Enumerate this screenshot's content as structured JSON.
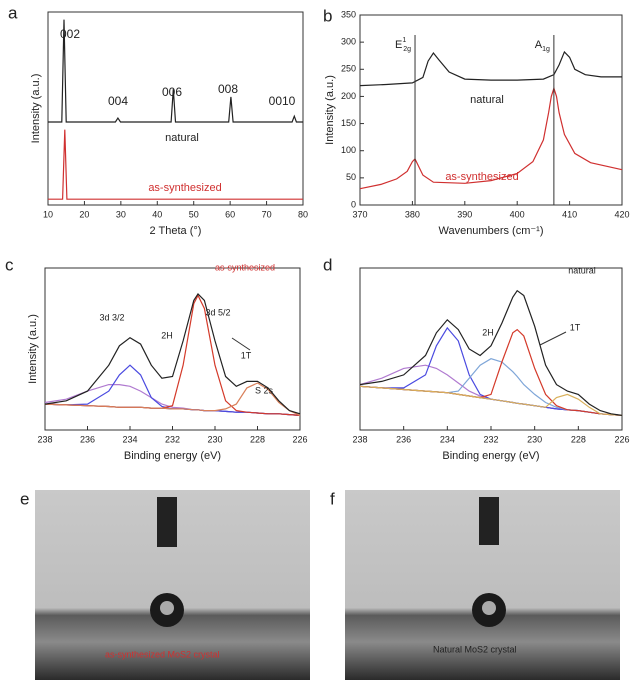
{
  "chart_data": [
    {
      "type": "line",
      "panel_label": "a",
      "x_label": "2 Theta (°)",
      "y_label": "Intensity (a.u.)",
      "xlim": [
        10,
        80
      ],
      "ylim": [
        0,
        100
      ],
      "xticks": [
        10,
        20,
        30,
        40,
        50,
        60,
        70,
        80
      ],
      "series": [
        {
          "name": "natural",
          "color": "#222222",
          "x": [
            10,
            13.8,
            14.4,
            15.0,
            28.5,
            29.2,
            29.9,
            43.8,
            44.4,
            45,
            59.6,
            60.2,
            60.8,
            77,
            77.6,
            78.2,
            80
          ],
          "values": [
            43,
            43,
            96,
            43,
            43,
            45,
            43,
            43,
            60,
            43,
            43,
            56,
            43,
            43,
            46,
            43,
            43
          ]
        },
        {
          "name": "as-synthesized",
          "color": "#d03030",
          "x": [
            10,
            14.0,
            14.6,
            15.2,
            80
          ],
          "values": [
            3,
            3,
            39,
            3,
            3
          ]
        }
      ],
      "annotations": [
        {
          "text": "002"
        },
        {
          "text": "004"
        },
        {
          "text": "006"
        },
        {
          "text": "008"
        },
        {
          "text": "0010"
        }
      ]
    },
    {
      "type": "line",
      "panel_label": "b",
      "x_label": "Wavenumbers (cm⁻¹)",
      "y_label": "Intensity (a.u.)",
      "xlim": [
        370,
        420
      ],
      "ylim": [
        0,
        350
      ],
      "xticks": [
        370,
        380,
        390,
        400,
        410,
        420
      ],
      "yticks": [
        0,
        50,
        100,
        150,
        200,
        250,
        300,
        350
      ],
      "series": [
        {
          "name": "natural",
          "color": "#222222",
          "x": [
            370,
            375,
            380,
            382,
            383,
            384,
            385,
            387,
            390,
            395,
            400,
            405,
            407,
            408,
            409,
            410,
            411,
            413,
            416,
            420
          ],
          "values": [
            220,
            222,
            225,
            235,
            265,
            280,
            268,
            245,
            232,
            230,
            230,
            232,
            240,
            258,
            282,
            272,
            250,
            240,
            236,
            236
          ]
        },
        {
          "name": "as-synthesized",
          "color": "#d03030",
          "x": [
            370,
            374,
            377,
            379,
            380,
            380.5,
            381,
            382,
            384,
            390,
            395,
            400,
            403,
            405,
            406,
            406.5,
            407,
            407.5,
            408,
            409,
            411,
            414,
            420
          ],
          "values": [
            30,
            38,
            48,
            62,
            80,
            85,
            75,
            55,
            42,
            40,
            45,
            58,
            80,
            120,
            170,
            200,
            215,
            200,
            170,
            130,
            95,
            78,
            65
          ]
        }
      ],
      "markers": [
        {
          "x": 380.5,
          "label": "E",
          "sup": "1",
          "sub": "2g"
        },
        {
          "x": 407,
          "label": "A",
          "sub": "1g"
        }
      ]
    },
    {
      "type": "line",
      "panel_label": "c",
      "x_label": "Binding energy (eV)",
      "y_label": "Intensity (a.u.)",
      "xlim": [
        238,
        226
      ],
      "ylim": [
        0,
        100
      ],
      "xticks": [
        238,
        236,
        234,
        232,
        230,
        228,
        226
      ],
      "x": [
        238,
        237,
        236,
        235,
        234.5,
        234,
        233.5,
        233,
        232.5,
        232,
        231.5,
        231,
        230.8,
        230.5,
        230,
        229.5,
        229,
        228.5,
        228,
        227.5,
        227,
        226.5,
        226
      ],
      "series": [
        {
          "color": "#1f2a8a",
          "values": [
            16,
            15.5,
            15,
            14.5,
            14,
            14,
            14,
            13.5,
            13.5,
            13,
            13,
            12.5,
            12.5,
            12,
            12,
            11.5,
            11,
            11,
            10.5,
            10,
            10,
            9.5,
            9
          ]
        },
        {
          "color": "#b07ad0",
          "values": [
            17,
            19,
            24,
            28,
            28,
            27,
            24,
            20,
            16,
            14,
            13.5,
            12.5,
            12.5,
            12,
            12,
            11.5,
            11,
            11,
            10.5,
            10,
            10,
            9.5,
            9
          ]
        },
        {
          "color": "#4a4ae0",
          "values": [
            16,
            15.5,
            16,
            24,
            34,
            40,
            34,
            20,
            14.5,
            13,
            13,
            12.5,
            12.5,
            12,
            12,
            11.5,
            11,
            11,
            10.5,
            10,
            10,
            9.5,
            9
          ]
        },
        {
          "color": "#d43a2a",
          "values": [
            16,
            15.5,
            15,
            14.5,
            14,
            14,
            14,
            13.5,
            13.5,
            15,
            40,
            78,
            83,
            75,
            40,
            18,
            12,
            11,
            10.5,
            10,
            10,
            9.5,
            9
          ]
        },
        {
          "color": "#d9805a",
          "values": [
            16,
            15.5,
            15,
            14.5,
            14,
            14,
            14,
            13.5,
            13.5,
            13,
            13,
            12.5,
            12.5,
            12,
            12,
            13,
            16,
            26,
            29,
            25,
            17,
            12,
            9
          ]
        },
        {
          "color": "#222222",
          "values": [
            16,
            18,
            24,
            40,
            52,
            57,
            53,
            40,
            32,
            33,
            55,
            80,
            84,
            80,
            55,
            33,
            27,
            30,
            30,
            26,
            18,
            12,
            10
          ]
        }
      ],
      "annotations": [
        {
          "text": "as-synthesized",
          "color": "#d03030"
        },
        {
          "text": "3d 3/2"
        },
        {
          "text": "2H"
        },
        {
          "text": "3d 5/2"
        },
        {
          "text": "1T"
        },
        {
          "text": "S 2s"
        }
      ]
    },
    {
      "type": "line",
      "panel_label": "d",
      "x_label": "Binding energy (eV)",
      "xlim": [
        238,
        226
      ],
      "ylim": [
        0,
        100
      ],
      "xticks": [
        238,
        236,
        234,
        232,
        230,
        228,
        226
      ],
      "x": [
        238,
        237,
        236,
        235,
        234.5,
        234,
        233.5,
        233,
        232.5,
        232,
        231.5,
        231,
        230.8,
        230.5,
        230,
        229.5,
        229,
        228.5,
        228,
        227.5,
        227,
        226.5,
        226
      ],
      "series": [
        {
          "color": "#1f2a8a",
          "values": [
            27,
            26,
            25,
            24,
            23.5,
            23,
            22,
            21,
            20,
            19,
            18,
            17,
            16.5,
            16,
            15,
            14,
            13,
            12.5,
            12,
            11,
            10,
            9.5,
            9
          ]
        },
        {
          "color": "#b07ad0",
          "values": [
            28,
            32,
            38,
            40,
            38,
            34,
            29,
            24,
            21,
            19,
            18,
            17,
            16.5,
            16,
            15,
            14,
            13,
            12.5,
            12,
            11,
            10,
            9.5,
            9
          ]
        },
        {
          "color": "#4a4ae0",
          "values": [
            27,
            26,
            26,
            34,
            52,
            63,
            55,
            34,
            22,
            19,
            18,
            17,
            16.5,
            16,
            15,
            14,
            13,
            12.5,
            12,
            11,
            10,
            9.5,
            9
          ]
        },
        {
          "color": "#7fa6d8",
          "values": [
            27,
            26,
            25,
            24,
            23.5,
            23,
            24,
            32,
            40,
            44,
            42,
            36,
            33,
            28,
            22,
            17,
            14,
            12.5,
            12,
            11,
            10,
            9.5,
            9
          ]
        },
        {
          "color": "#d43a2a",
          "values": [
            27,
            26,
            25,
            24,
            23.5,
            23,
            22,
            21,
            20,
            22,
            42,
            60,
            62,
            58,
            38,
            22,
            15,
            12.5,
            12,
            11,
            10,
            9.5,
            9
          ]
        },
        {
          "color": "#d9b05a",
          "values": [
            27,
            26,
            25,
            24,
            23.5,
            23,
            22,
            21,
            20,
            19,
            18,
            17,
            16.5,
            16,
            15,
            14,
            20,
            22,
            19,
            14,
            10,
            9.5,
            9
          ]
        },
        {
          "color": "#222222",
          "values": [
            28,
            30,
            34,
            46,
            60,
            68,
            62,
            50,
            46,
            52,
            66,
            82,
            86,
            83,
            64,
            40,
            28,
            24,
            22,
            16,
            12,
            10,
            9
          ]
        }
      ],
      "annotations": [
        {
          "text": "natural"
        },
        {
          "text": "2H"
        },
        {
          "text": "1T"
        }
      ]
    }
  ],
  "photos": [
    {
      "panel_label": "e",
      "caption": "as-synthesized MoS2 crystal"
    },
    {
      "panel_label": "f",
      "caption": "Natural MoS2 crystal"
    }
  ]
}
